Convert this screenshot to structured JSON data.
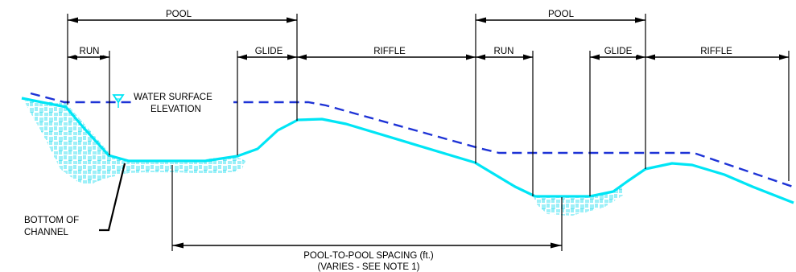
{
  "labels": {
    "pool": "POOL",
    "run": "RUN",
    "glide": "GLIDE",
    "riffle": "RIFFLE",
    "water_surface_line1": "WATER SURFACE",
    "water_surface_line2": "ELEVATION",
    "bottom_line1": "BOTTOM OF",
    "bottom_line2": "CHANNEL",
    "spacing_line1": "POOL-TO-POOL SPACING (ft.)",
    "spacing_line2": "(VARIES - SEE NOTE 1)"
  },
  "colors": {
    "channel_bed": "#00e5f5",
    "water_surface": "#1e33d6",
    "dimension_lines": "#000000",
    "hatch": "#00d8ec"
  },
  "icons": {
    "water_surface_marker": "inverted-triangle-icon"
  }
}
